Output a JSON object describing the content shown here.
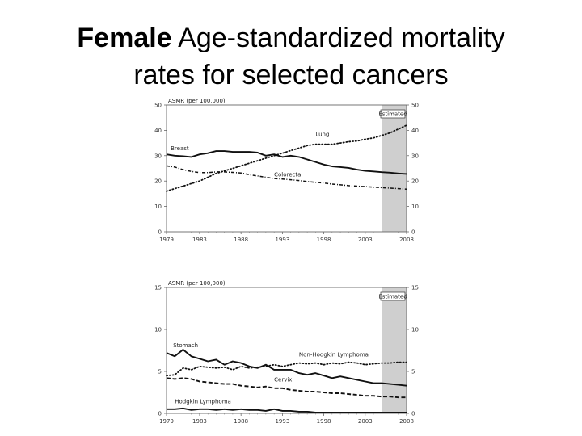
{
  "title": {
    "bold": "Female",
    "rest": " Age-standardized mortality",
    "line2": "rates for selected cancers"
  },
  "chart_data": [
    {
      "type": "line",
      "ylabel": "ASMR (per 100,000)",
      "ylim": [
        0,
        50
      ],
      "yticks": [
        "0",
        "10",
        "20",
        "30",
        "40",
        "50"
      ],
      "xlim": [
        1979,
        2008
      ],
      "xticks": [
        {
          "x": 1979,
          "label": "1979"
        },
        {
          "x": 1983,
          "label": "1983"
        },
        {
          "x": 1988,
          "label": "1988"
        },
        {
          "x": 1993,
          "label": "1993"
        },
        {
          "x": 1998,
          "label": "1998"
        },
        {
          "x": 2003,
          "label": "2003"
        },
        {
          "x": 2008,
          "label": "2008"
        }
      ],
      "estimated": {
        "label": "Estimated",
        "from": 2005,
        "to": 2008
      },
      "series": [
        {
          "name": "Breast",
          "style": "solid",
          "label_at": [
            1979.5,
            32.2
          ],
          "x": [
            1979,
            1980,
            1981,
            1982,
            1983,
            1984,
            1985,
            1986,
            1987,
            1988,
            1989,
            1990,
            1991,
            1992,
            1993,
            1994,
            1995,
            1996,
            1997,
            1998,
            1999,
            2000,
            2001,
            2002,
            2003,
            2004,
            2005,
            2006,
            2007,
            2008
          ],
          "values": [
            30.5,
            30,
            29.8,
            29.5,
            30.5,
            31,
            31.8,
            31.8,
            31.5,
            31.5,
            31.5,
            31.2,
            30,
            30.5,
            29.5,
            30,
            29.5,
            28.5,
            27.5,
            26.5,
            25.8,
            25.5,
            25.2,
            24.5,
            24,
            23.8,
            23.5,
            23.3,
            23,
            22.8
          ]
        },
        {
          "name": "Lung",
          "style": "dotted",
          "label_at": [
            1997,
            37.7
          ],
          "x": [
            1979,
            1980,
            1981,
            1982,
            1983,
            1984,
            1985,
            1986,
            1987,
            1988,
            1989,
            1990,
            1991,
            1992,
            1993,
            1994,
            1995,
            1996,
            1997,
            1998,
            1999,
            2000,
            2001,
            2002,
            2003,
            2004,
            2005,
            2006,
            2007,
            2008
          ],
          "values": [
            16,
            17,
            18,
            19,
            20,
            21.5,
            23,
            24,
            25,
            26,
            27,
            28,
            29,
            30,
            31,
            32,
            33,
            34,
            34.5,
            34.5,
            34.5,
            35,
            35.5,
            35.8,
            36.5,
            37,
            38,
            39,
            40.5,
            42
          ]
        },
        {
          "name": "Colorectal",
          "style": "dashdot",
          "label_at": [
            1992,
            21.8
          ],
          "x": [
            1979,
            1980,
            1981,
            1982,
            1983,
            1984,
            1985,
            1986,
            1987,
            1988,
            1989,
            1990,
            1991,
            1992,
            1993,
            1994,
            1995,
            1996,
            1997,
            1998,
            1999,
            2000,
            2001,
            2002,
            2003,
            2004,
            2005,
            2006,
            2007,
            2008
          ],
          "values": [
            26,
            25.5,
            24.5,
            23.8,
            23.3,
            23.3,
            23.6,
            23.6,
            23.4,
            23.2,
            22.5,
            22,
            21.5,
            21,
            20.8,
            20.5,
            20.2,
            19.8,
            19.5,
            19.2,
            18.8,
            18.5,
            18.2,
            18,
            17.8,
            17.6,
            17.4,
            17.2,
            17,
            16.8
          ]
        }
      ]
    },
    {
      "type": "line",
      "ylabel": "ASMR (per 100,000)",
      "ylim": [
        0,
        15
      ],
      "yticks": [
        "0",
        "5",
        "10",
        "15"
      ],
      "xlim": [
        1979,
        2008
      ],
      "xticks": [
        {
          "x": 1979,
          "label": "1979"
        },
        {
          "x": 1983,
          "label": "1983"
        },
        {
          "x": 1988,
          "label": "1988"
        },
        {
          "x": 1993,
          "label": "1993"
        },
        {
          "x": 1998,
          "label": "1998"
        },
        {
          "x": 2003,
          "label": "2003"
        },
        {
          "x": 2008,
          "label": "2008"
        }
      ],
      "estimated": {
        "label": "Estimated",
        "from": 2005,
        "to": 2008
      },
      "series": [
        {
          "name": "Stomach",
          "style": "solid",
          "label_at": [
            1979.8,
            7.9
          ],
          "x": [
            1979,
            1980,
            1981,
            1982,
            1983,
            1984,
            1985,
            1986,
            1987,
            1988,
            1989,
            1990,
            1991,
            1992,
            1993,
            1994,
            1995,
            1996,
            1997,
            1998,
            1999,
            2000,
            2001,
            2002,
            2003,
            2004,
            2005,
            2006,
            2007,
            2008
          ],
          "values": [
            7.2,
            6.8,
            7.6,
            6.8,
            6.5,
            6.2,
            6.4,
            5.8,
            6.2,
            6,
            5.6,
            5.4,
            5.8,
            5.2,
            5.2,
            5.2,
            4.8,
            4.6,
            4.8,
            4.5,
            4.2,
            4.4,
            4.2,
            4,
            3.8,
            3.6,
            3.6,
            3.5,
            3.4,
            3.3
          ]
        },
        {
          "name": "Non-Hodgkin Lymphoma",
          "style": "dotted",
          "label_at": [
            1995,
            6.8
          ],
          "x": [
            1979,
            1980,
            1981,
            1982,
            1983,
            1984,
            1985,
            1986,
            1987,
            1988,
            1989,
            1990,
            1991,
            1992,
            1993,
            1994,
            1995,
            1996,
            1997,
            1998,
            1999,
            2000,
            2001,
            2002,
            2003,
            2004,
            2005,
            2006,
            2007,
            2008
          ],
          "values": [
            4.5,
            4.6,
            5.4,
            5.2,
            5.6,
            5.5,
            5.4,
            5.5,
            5.2,
            5.6,
            5.4,
            5.5,
            5.6,
            5.8,
            5.6,
            5.8,
            6,
            5.9,
            6,
            5.8,
            6,
            5.9,
            6.1,
            6,
            5.8,
            5.9,
            6,
            6,
            6.1,
            6.1
          ]
        },
        {
          "name": "Cervix",
          "style": "dashed",
          "label_at": [
            1992,
            3.8
          ],
          "x": [
            1979,
            1980,
            1981,
            1982,
            1983,
            1984,
            1985,
            1986,
            1987,
            1988,
            1989,
            1990,
            1991,
            1992,
            1993,
            1994,
            1995,
            1996,
            1997,
            1998,
            1999,
            2000,
            2001,
            2002,
            2003,
            2004,
            2005,
            2006,
            2007,
            2008
          ],
          "values": [
            4.2,
            4.1,
            4.2,
            4.1,
            3.8,
            3.7,
            3.6,
            3.5,
            3.5,
            3.3,
            3.2,
            3.1,
            3.2,
            3,
            3,
            2.8,
            2.7,
            2.6,
            2.6,
            2.5,
            2.4,
            2.4,
            2.3,
            2.2,
            2.1,
            2.1,
            2,
            2,
            1.9,
            1.9
          ]
        },
        {
          "name": "Hodgkin Lymphoma",
          "style": "solid",
          "label_at": [
            1980,
            1.2
          ],
          "x": [
            1979,
            1980,
            1981,
            1982,
            1983,
            1984,
            1985,
            1986,
            1987,
            1988,
            1989,
            1990,
            1991,
            1992,
            1993,
            1994,
            1995,
            1996,
            1997,
            1998,
            1999,
            2000,
            2001,
            2002,
            2003,
            2004,
            2005,
            2006,
            2007,
            2008
          ],
          "values": [
            0.5,
            0.5,
            0.6,
            0.4,
            0.5,
            0.5,
            0.4,
            0.5,
            0.4,
            0.5,
            0.4,
            0.4,
            0.3,
            0.5,
            0.3,
            0.3,
            0.2,
            0.2,
            0.1,
            0.1,
            0.1,
            0.1,
            0.1,
            0.1,
            0.1,
            0.1,
            0.1,
            0.1,
            0.1,
            0.1
          ]
        }
      ]
    }
  ]
}
